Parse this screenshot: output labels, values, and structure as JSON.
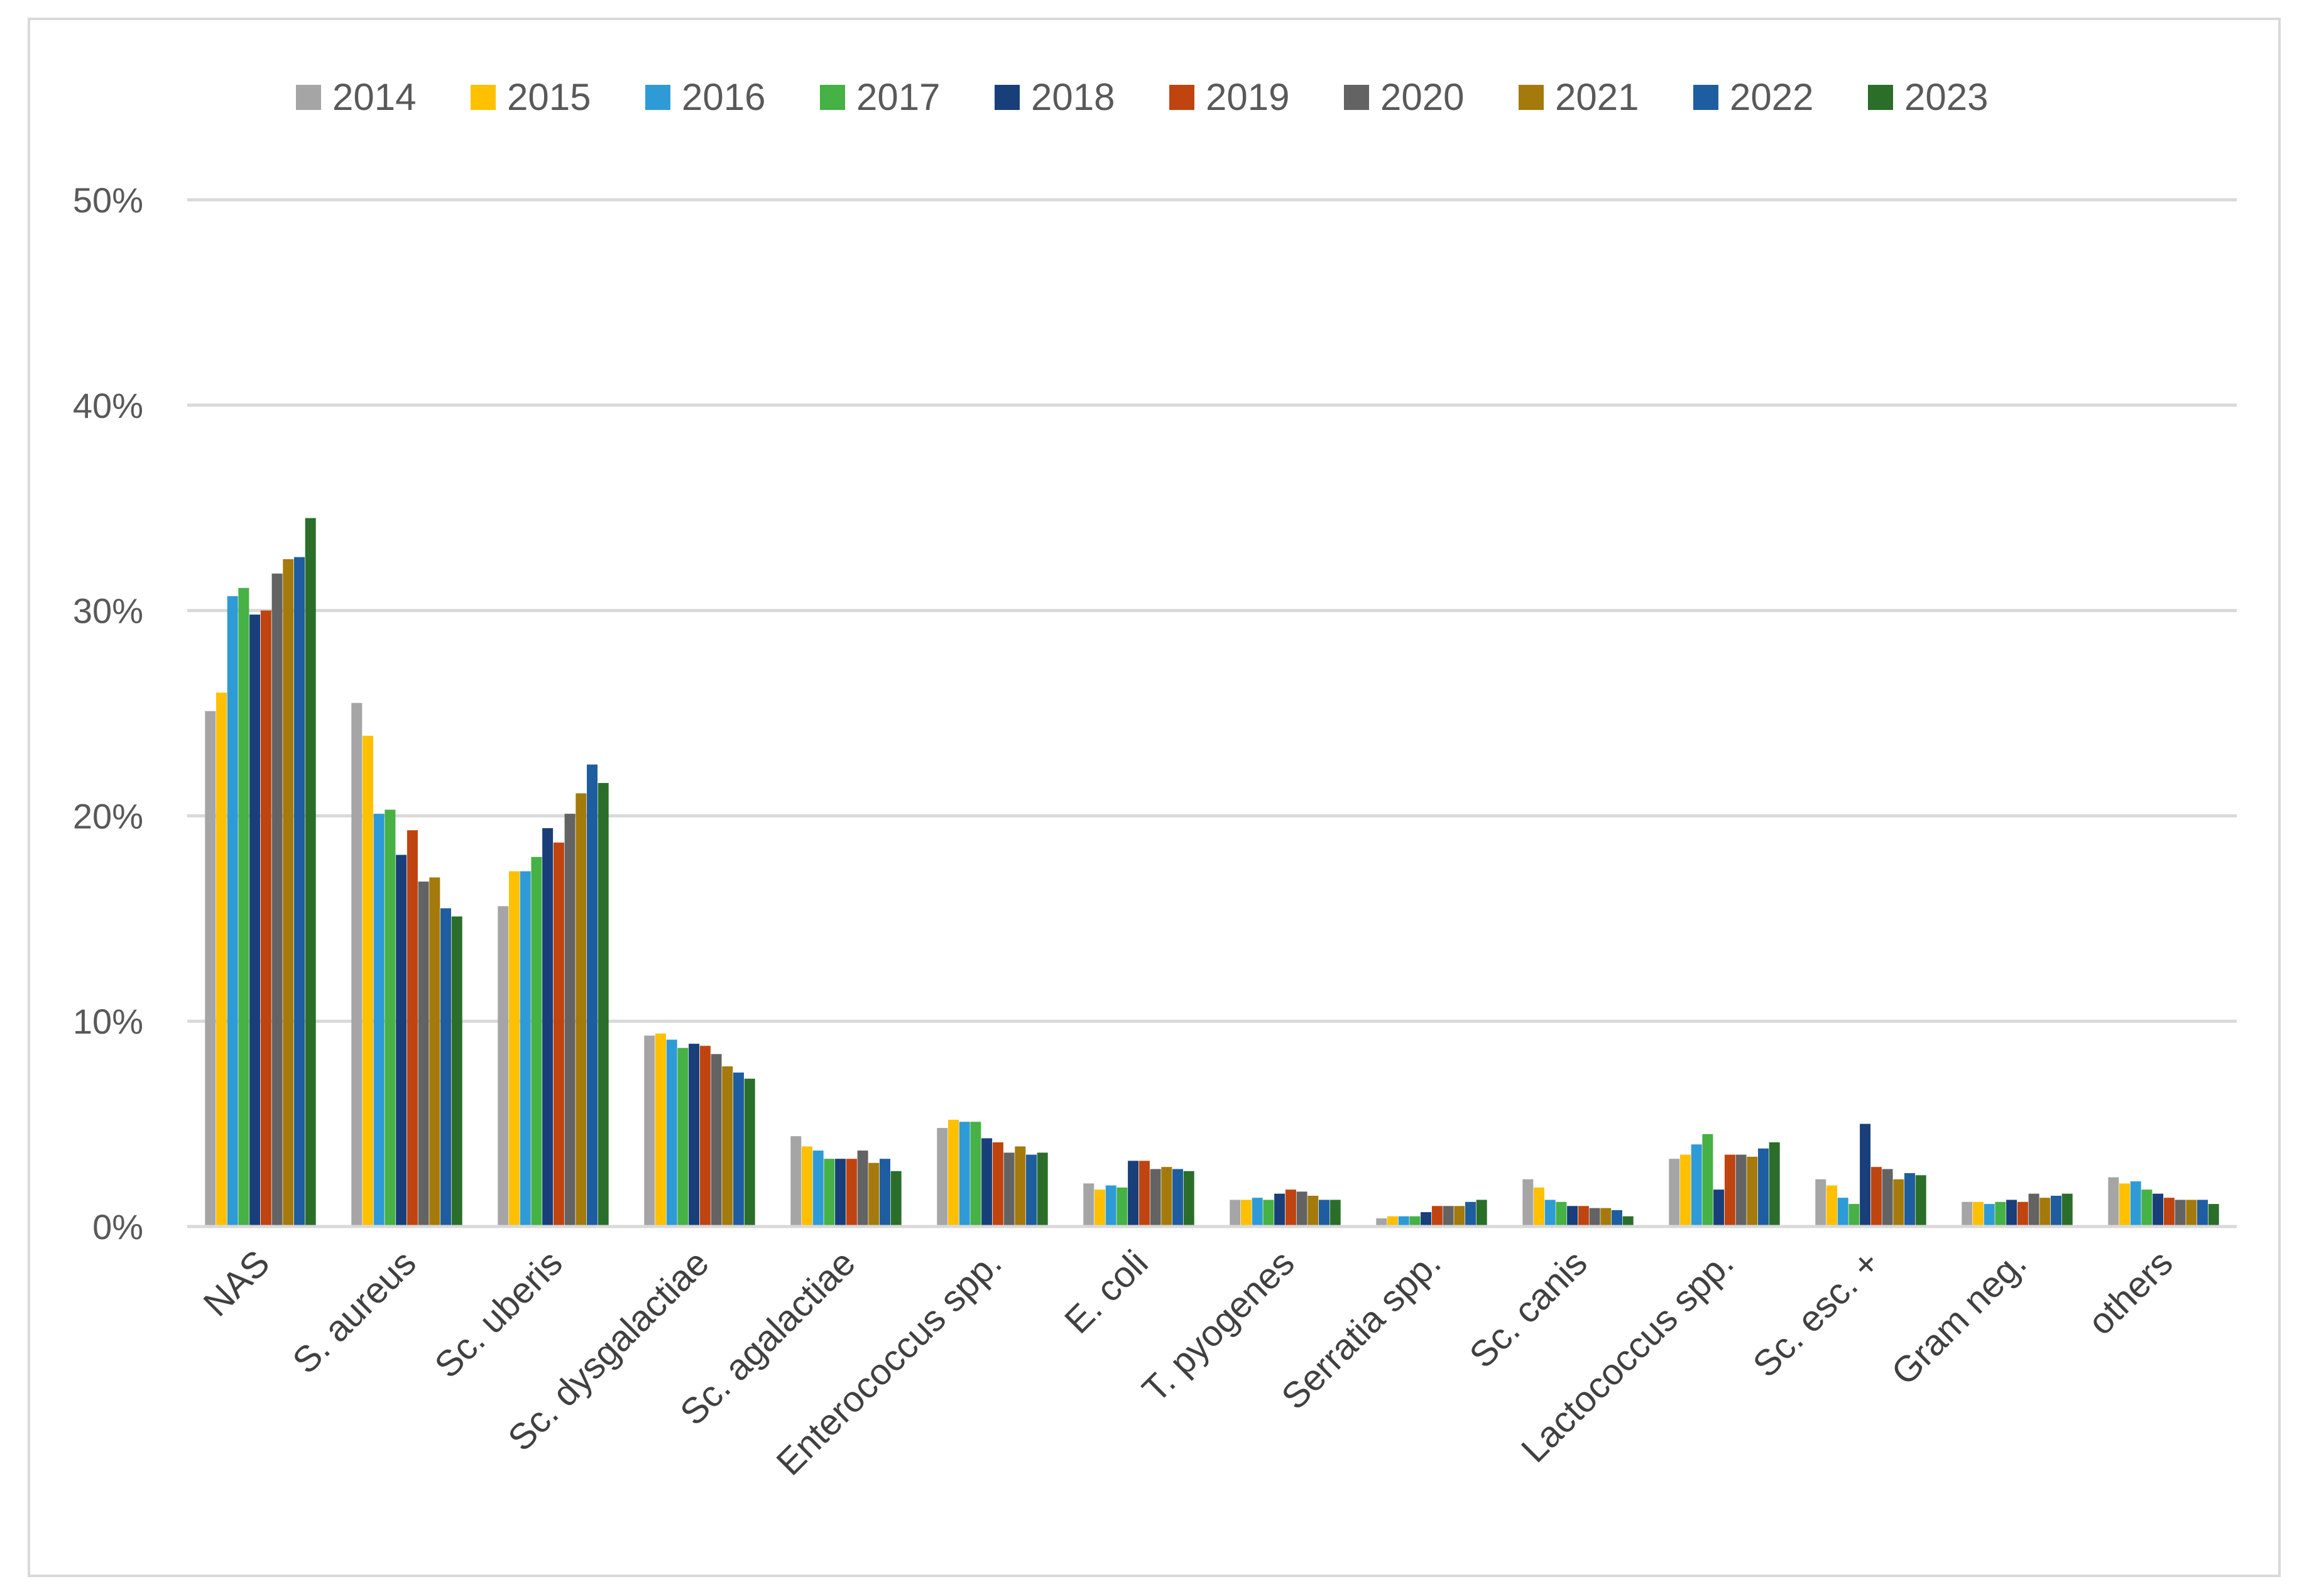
{
  "chart_data": {
    "type": "bar",
    "title": "",
    "xlabel": "",
    "ylabel": "",
    "ylim": [
      0,
      50
    ],
    "yticks": [
      0,
      10,
      20,
      30,
      40,
      50
    ],
    "ytick_labels": [
      "0%",
      "10%",
      "20%",
      "30%",
      "40%",
      "50%"
    ],
    "grid": true,
    "legend_position": "top",
    "categories": [
      "NAS",
      "S. aureus",
      "Sc. uberis",
      "Sc. dysgalactiae",
      "Sc. agalactiae",
      "Enterococcus spp.",
      "E. coli",
      "T. pyogenes",
      "Serratia spp.",
      "Sc. canis",
      "Lactococcus spp.",
      "Sc. esc. +",
      "Gram neg.",
      "others"
    ],
    "series": [
      {
        "name": "2014",
        "color": "#a5a5a5",
        "values": [
          25.1,
          25.5,
          15.6,
          9.3,
          4.4,
          4.8,
          2.1,
          1.3,
          0.4,
          2.3,
          3.3,
          2.3,
          1.2,
          2.4
        ]
      },
      {
        "name": "2015",
        "color": "#ffc000",
        "values": [
          26.0,
          23.9,
          17.3,
          9.4,
          3.9,
          5.2,
          1.8,
          1.3,
          0.5,
          1.9,
          3.5,
          2.0,
          1.2,
          2.1
        ]
      },
      {
        "name": "2016",
        "color": "#2e9bd6",
        "values": [
          30.7,
          20.1,
          17.3,
          9.1,
          3.7,
          5.1,
          2.0,
          1.4,
          0.5,
          1.3,
          4.0,
          1.4,
          1.1,
          2.2
        ]
      },
      {
        "name": "2017",
        "color": "#46b144",
        "values": [
          31.1,
          20.3,
          18.0,
          8.7,
          3.3,
          5.1,
          1.9,
          1.3,
          0.5,
          1.2,
          4.5,
          1.1,
          1.2,
          1.8
        ]
      },
      {
        "name": "2018",
        "color": "#183f7a",
        "values": [
          29.8,
          18.1,
          19.4,
          8.9,
          3.3,
          4.3,
          3.2,
          1.6,
          0.7,
          1.0,
          1.8,
          5.0,
          1.3,
          1.6
        ]
      },
      {
        "name": "2019",
        "color": "#c0440f",
        "values": [
          30.0,
          19.3,
          18.7,
          8.8,
          3.3,
          4.1,
          3.2,
          1.8,
          1.0,
          1.0,
          3.5,
          2.9,
          1.2,
          1.4
        ]
      },
      {
        "name": "2020",
        "color": "#636363",
        "values": [
          31.8,
          16.8,
          20.1,
          8.4,
          3.7,
          3.6,
          2.8,
          1.7,
          1.0,
          0.9,
          3.5,
          2.8,
          1.6,
          1.3
        ]
      },
      {
        "name": "2021",
        "color": "#a47a0c",
        "values": [
          32.5,
          17.0,
          21.1,
          7.8,
          3.1,
          3.9,
          2.9,
          1.5,
          1.0,
          0.9,
          3.4,
          2.3,
          1.4,
          1.3
        ]
      },
      {
        "name": "2022",
        "color": "#1e5ea0",
        "values": [
          32.6,
          15.5,
          22.5,
          7.5,
          3.3,
          3.5,
          2.8,
          1.3,
          1.2,
          0.8,
          3.8,
          2.6,
          1.5,
          1.3
        ]
      },
      {
        "name": "2023",
        "color": "#2a6e2a",
        "values": [
          34.5,
          15.1,
          21.6,
          7.2,
          2.7,
          3.6,
          2.7,
          1.3,
          1.3,
          0.5,
          4.1,
          2.5,
          1.6,
          1.1
        ]
      }
    ]
  }
}
